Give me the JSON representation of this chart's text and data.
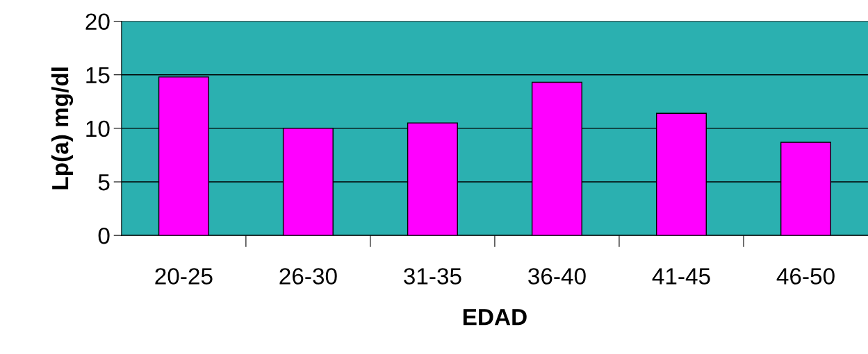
{
  "chart_data": {
    "type": "bar",
    "xlabel": "EDAD",
    "ylabel": "Lp(a) mg/dl",
    "categories": [
      "20-25",
      "26-30",
      "31-35",
      "36-40",
      "41-45",
      "46-50"
    ],
    "values": [
      14.8,
      10.0,
      10.5,
      14.3,
      11.4,
      8.7
    ],
    "color": "#ff00ff",
    "ylim": [
      0,
      20
    ],
    "yticks": [
      0,
      5,
      10,
      15,
      20
    ],
    "grid": "y",
    "legend": false
  }
}
